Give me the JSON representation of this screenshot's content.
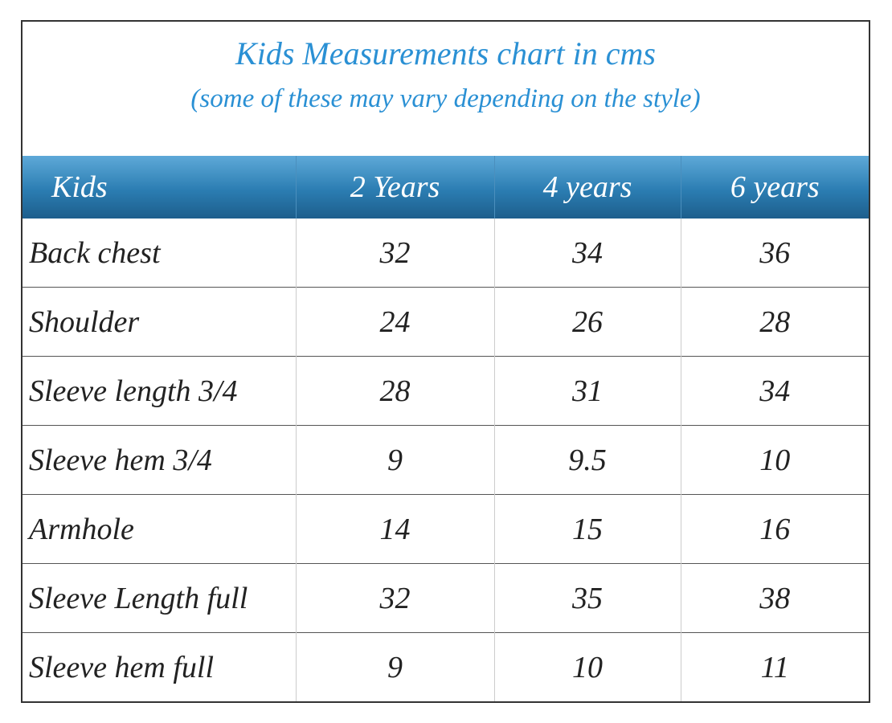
{
  "header": {
    "title": "Kids Measurements chart in cms",
    "subtitle": "(some of these may vary depending on the style)"
  },
  "table": {
    "columns": [
      "Kids",
      "2 Years",
      "4 years",
      "6 years"
    ],
    "rows": [
      [
        "Back chest",
        32,
        34,
        36
      ],
      [
        "Shoulder",
        24,
        26,
        28
      ],
      [
        "Sleeve length 3/4",
        28,
        31,
        34
      ],
      [
        "Sleeve hem 3/4",
        9,
        9.5,
        10
      ],
      [
        "Armhole",
        14,
        15,
        16
      ],
      [
        "Sleeve Length full",
        32,
        35,
        38
      ],
      [
        "Sleeve hem full",
        9,
        10,
        11
      ]
    ]
  }
}
